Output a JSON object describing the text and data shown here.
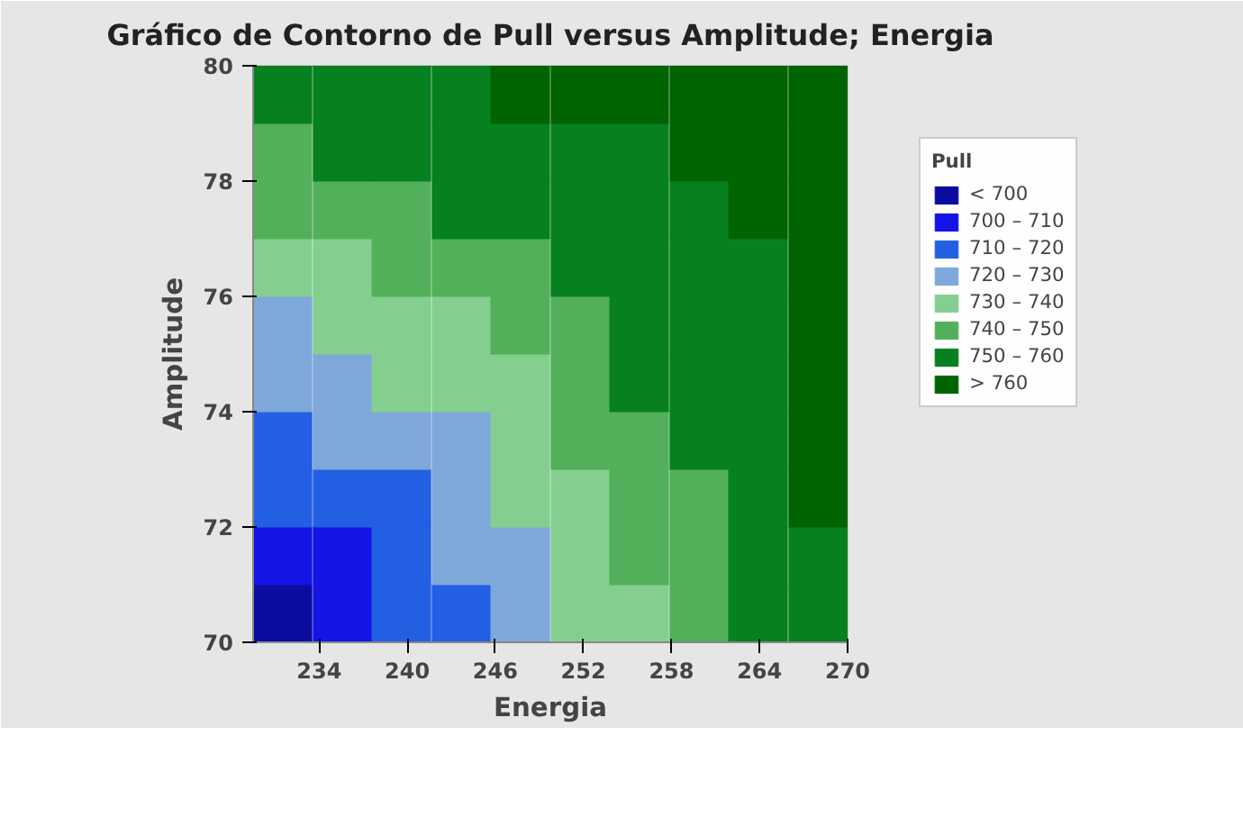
{
  "chart_data": {
    "type": "scatter",
    "marker": "square",
    "title": "Gráfico de Contorno de Pull versus Amplitude; Energia",
    "xlabel": "Energia",
    "ylabel": "Amplitude",
    "legend_title": "Pull",
    "legend": "right",
    "xlim": [
      229.5,
      270
    ],
    "xticks": [
      234,
      240,
      246,
      252,
      258,
      264,
      270
    ],
    "ylim": [
      70,
      80
    ],
    "yticks": [
      70,
      72,
      74,
      76,
      78,
      80
    ],
    "series": [
      {
        "name": "< 700",
        "color": "#0c0ca0",
        "x": [
          231.5
        ],
        "values": [
          70.5
        ]
      },
      {
        "name": "700 – 710",
        "color": "#1414e6",
        "x": [
          231.5,
          235.6,
          235.6
        ],
        "values": [
          71.5,
          71.5,
          70.5
        ]
      },
      {
        "name": "710 – 720",
        "color": "#235fe3",
        "x": [
          231.5,
          231.5,
          235.6,
          239.6,
          239.6,
          239.6,
          243.7
        ],
        "values": [
          73.5,
          72.5,
          72.5,
          72.5,
          71.5,
          70.5,
          70.5
        ]
      },
      {
        "name": "720 – 730",
        "color": "#7ea7da",
        "x": [
          231.5,
          231.5,
          235.6,
          235.6,
          239.6,
          243.7,
          243.7,
          243.7,
          247.7,
          247.7
        ],
        "values": [
          75.5,
          74.5,
          74.5,
          73.5,
          73.5,
          73.5,
          72.5,
          71.5,
          71.5,
          70.5
        ]
      },
      {
        "name": "730 – 740",
        "color": "#84cf90",
        "x": [
          231.5,
          235.6,
          235.6,
          239.6,
          243.7,
          239.6,
          243.7,
          247.7,
          247.7,
          247.7,
          251.8,
          251.8,
          251.8,
          255.8
        ],
        "values": [
          76.5,
          76.5,
          75.5,
          75.5,
          75.5,
          74.5,
          74.5,
          74.5,
          73.5,
          72.5,
          72.5,
          71.5,
          70.5,
          70.5
        ]
      },
      {
        "name": "740 – 750",
        "color": "#52b05a",
        "x": [
          231.5,
          231.5,
          235.6,
          239.6,
          239.6,
          243.7,
          247.7,
          247.7,
          251.8,
          251.8,
          251.8,
          255.8,
          255.8,
          259.9,
          255.8,
          259.9,
          259.9
        ],
        "values": [
          78.5,
          77.5,
          77.5,
          77.5,
          76.5,
          76.5,
          76.5,
          75.5,
          75.5,
          74.5,
          73.5,
          73.5,
          72.5,
          72.5,
          71.5,
          71.5,
          70.5
        ]
      },
      {
        "name": "750 – 760",
        "color": "#078020",
        "x": [
          231.5,
          235.6,
          239.6,
          243.7,
          235.6,
          239.6,
          243.7,
          247.7,
          251.8,
          255.8,
          243.7,
          247.7,
          251.8,
          255.8,
          259.9,
          251.8,
          255.8,
          259.9,
          263.9,
          255.8,
          259.9,
          263.9,
          255.8,
          259.9,
          263.9,
          259.9,
          263.9,
          263.9,
          263.9,
          268.0,
          263.9,
          268.0
        ],
        "values": [
          79.5,
          79.5,
          79.5,
          79.5,
          78.5,
          78.5,
          78.5,
          78.5,
          78.5,
          78.5,
          77.5,
          77.5,
          77.5,
          77.5,
          77.5,
          76.5,
          76.5,
          76.5,
          76.5,
          75.5,
          75.5,
          75.5,
          74.5,
          74.5,
          74.5,
          73.5,
          73.5,
          72.5,
          71.5,
          71.5,
          70.5,
          70.5
        ]
      },
      {
        "name": "> 760",
        "color": "#006400",
        "x": [
          247.7,
          251.8,
          255.8,
          259.9,
          263.9,
          268.0,
          259.9,
          263.9,
          268.0,
          263.9,
          268.0,
          268.0,
          268.0,
          268.0,
          268.0,
          268.0
        ],
        "values": [
          79.5,
          79.5,
          79.5,
          79.5,
          79.5,
          79.5,
          78.5,
          78.5,
          78.5,
          77.5,
          77.5,
          76.5,
          75.5,
          74.5,
          73.5,
          72.5
        ]
      }
    ]
  }
}
